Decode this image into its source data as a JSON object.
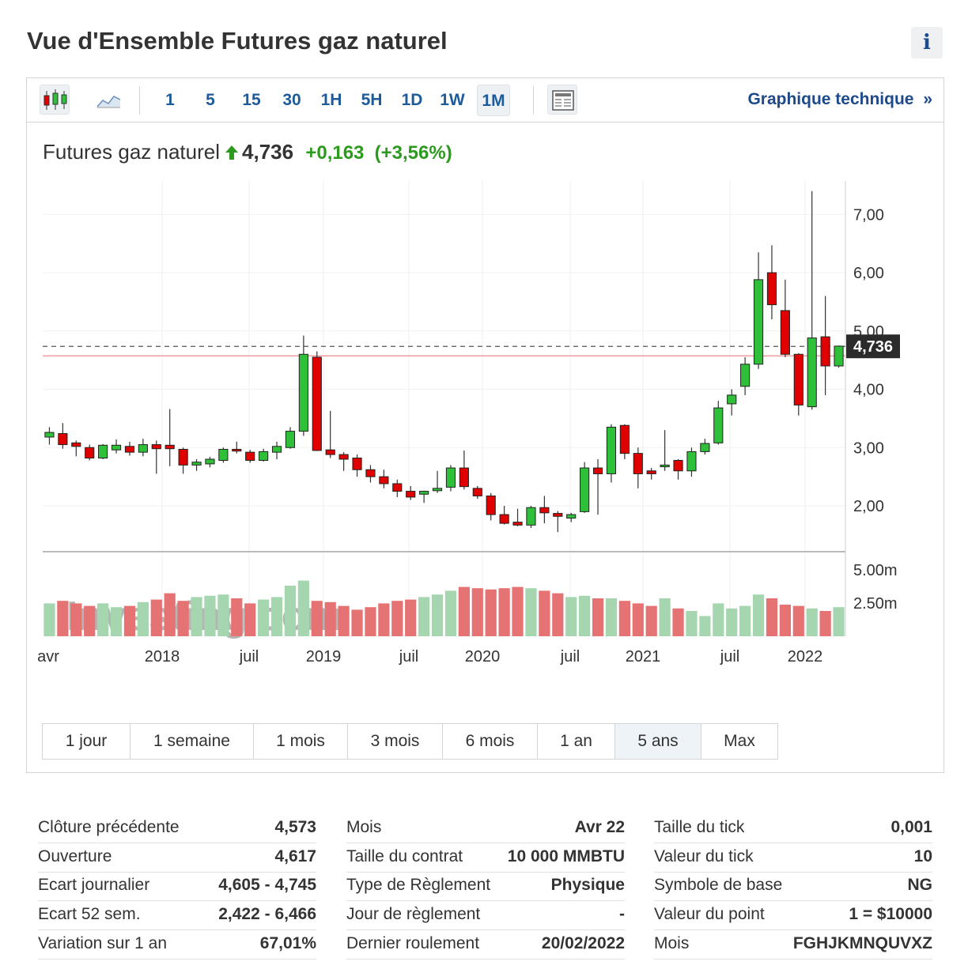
{
  "header": {
    "title": "Vue d'Ensemble Futures gaz naturel",
    "info_label": "i"
  },
  "toolbar": {
    "intervals": [
      "1",
      "5",
      "15",
      "30",
      "1H",
      "5H",
      "1D",
      "1W",
      "1M"
    ],
    "active_interval": "1M",
    "technical_link": "Graphique technique",
    "technical_chevron": "»"
  },
  "quote": {
    "name": "Futures gaz naturel",
    "price": "4,736",
    "change": "+0,163",
    "change_pct": "(+3,56%)",
    "direction": "up"
  },
  "colors": {
    "up": "#2fc03a",
    "down": "#e00000",
    "up_volume": "#a5d6b0",
    "down_volume": "#e57373",
    "link": "#1d4a8a"
  },
  "periods": [
    "1 jour",
    "1 semaine",
    "1 mois",
    "3 mois",
    "6 mois",
    "1 an",
    "5 ans",
    "Max"
  ],
  "active_period": "5 ans",
  "chart_data": {
    "type": "candlestick",
    "title": "",
    "y_ticks": [
      "7,00",
      "6,00",
      "5,00",
      "4,00",
      "3,00",
      "2,00"
    ],
    "ylim": [
      1.2,
      7.6
    ],
    "current_price_label": "4,736",
    "current_price": 4.736,
    "previous_close": 4.573,
    "volume_ticks": [
      "5.00m",
      "2.50m"
    ],
    "x_labels": [
      "avr",
      "2018",
      "juil",
      "2019",
      "juil",
      "2020",
      "juil",
      "2021",
      "juil",
      "2022"
    ],
    "watermark": "Investing.com",
    "candles": [
      {
        "o": 3.18,
        "h": 3.35,
        "l": 3.05,
        "c": 3.26
      },
      {
        "o": 3.24,
        "h": 3.42,
        "l": 2.98,
        "c": 3.05
      },
      {
        "o": 3.08,
        "h": 3.12,
        "l": 2.85,
        "c": 3.02
      },
      {
        "o": 3.0,
        "h": 3.05,
        "l": 2.78,
        "c": 2.82
      },
      {
        "o": 2.82,
        "h": 3.06,
        "l": 2.8,
        "c": 3.04
      },
      {
        "o": 2.96,
        "h": 3.14,
        "l": 2.9,
        "c": 3.04
      },
      {
        "o": 3.02,
        "h": 3.1,
        "l": 2.86,
        "c": 2.92
      },
      {
        "o": 2.92,
        "h": 3.15,
        "l": 2.85,
        "c": 3.05
      },
      {
        "o": 3.05,
        "h": 3.12,
        "l": 2.55,
        "c": 2.98
      },
      {
        "o": 3.04,
        "h": 3.66,
        "l": 2.68,
        "c": 2.98
      },
      {
        "o": 2.97,
        "h": 3.0,
        "l": 2.55,
        "c": 2.7
      },
      {
        "o": 2.7,
        "h": 2.8,
        "l": 2.6,
        "c": 2.75
      },
      {
        "o": 2.72,
        "h": 2.84,
        "l": 2.66,
        "c": 2.8
      },
      {
        "o": 2.78,
        "h": 3.0,
        "l": 2.74,
        "c": 2.97
      },
      {
        "o": 2.97,
        "h": 3.1,
        "l": 2.9,
        "c": 2.94
      },
      {
        "o": 2.92,
        "h": 2.96,
        "l": 2.74,
        "c": 2.78
      },
      {
        "o": 2.78,
        "h": 2.98,
        "l": 2.76,
        "c": 2.93
      },
      {
        "o": 2.92,
        "h": 3.1,
        "l": 2.8,
        "c": 3.02
      },
      {
        "o": 3.0,
        "h": 3.35,
        "l": 2.98,
        "c": 3.28
      },
      {
        "o": 3.28,
        "h": 4.92,
        "l": 3.2,
        "c": 4.6
      },
      {
        "o": 4.55,
        "h": 4.65,
        "l": 2.94,
        "c": 2.95
      },
      {
        "o": 2.96,
        "h": 3.63,
        "l": 2.82,
        "c": 2.88
      },
      {
        "o": 2.88,
        "h": 2.92,
        "l": 2.6,
        "c": 2.8
      },
      {
        "o": 2.82,
        "h": 2.88,
        "l": 2.5,
        "c": 2.62
      },
      {
        "o": 2.62,
        "h": 2.7,
        "l": 2.4,
        "c": 2.5
      },
      {
        "o": 2.5,
        "h": 2.62,
        "l": 2.3,
        "c": 2.38
      },
      {
        "o": 2.38,
        "h": 2.45,
        "l": 2.15,
        "c": 2.25
      },
      {
        "o": 2.25,
        "h": 2.34,
        "l": 2.1,
        "c": 2.15
      },
      {
        "o": 2.2,
        "h": 2.26,
        "l": 2.05,
        "c": 2.25
      },
      {
        "o": 2.26,
        "h": 2.6,
        "l": 2.22,
        "c": 2.3
      },
      {
        "o": 2.32,
        "h": 2.7,
        "l": 2.25,
        "c": 2.65
      },
      {
        "o": 2.65,
        "h": 2.95,
        "l": 2.28,
        "c": 2.33
      },
      {
        "o": 2.3,
        "h": 2.34,
        "l": 2.12,
        "c": 2.17
      },
      {
        "o": 2.17,
        "h": 2.22,
        "l": 1.75,
        "c": 1.85
      },
      {
        "o": 1.85,
        "h": 2.0,
        "l": 1.68,
        "c": 1.7
      },
      {
        "o": 1.72,
        "h": 1.95,
        "l": 1.65,
        "c": 1.67
      },
      {
        "o": 1.67,
        "h": 2.0,
        "l": 1.62,
        "c": 1.97
      },
      {
        "o": 1.97,
        "h": 2.17,
        "l": 1.7,
        "c": 1.88
      },
      {
        "o": 1.87,
        "h": 1.91,
        "l": 1.55,
        "c": 1.82
      },
      {
        "o": 1.79,
        "h": 1.88,
        "l": 1.72,
        "c": 1.85
      },
      {
        "o": 1.9,
        "h": 2.75,
        "l": 1.88,
        "c": 2.65
      },
      {
        "o": 2.65,
        "h": 2.8,
        "l": 1.85,
        "c": 2.55
      },
      {
        "o": 2.55,
        "h": 3.4,
        "l": 2.4,
        "c": 3.35
      },
      {
        "o": 3.38,
        "h": 3.4,
        "l": 2.8,
        "c": 2.9
      },
      {
        "o": 2.9,
        "h": 3.0,
        "l": 2.3,
        "c": 2.55
      },
      {
        "o": 2.6,
        "h": 2.65,
        "l": 2.45,
        "c": 2.55
      },
      {
        "o": 2.67,
        "h": 3.3,
        "l": 2.6,
        "c": 2.7
      },
      {
        "o": 2.78,
        "h": 2.8,
        "l": 2.45,
        "c": 2.6
      },
      {
        "o": 2.6,
        "h": 3.0,
        "l": 2.5,
        "c": 2.93
      },
      {
        "o": 2.93,
        "h": 3.15,
        "l": 2.88,
        "c": 3.07
      },
      {
        "o": 3.08,
        "h": 3.8,
        "l": 3.05,
        "c": 3.68
      },
      {
        "o": 3.75,
        "h": 4.0,
        "l": 3.55,
        "c": 3.9
      },
      {
        "o": 4.05,
        "h": 4.55,
        "l": 3.9,
        "c": 4.43
      },
      {
        "o": 4.43,
        "h": 6.35,
        "l": 4.35,
        "c": 5.88
      },
      {
        "o": 6.0,
        "h": 6.47,
        "l": 5.2,
        "c": 5.45
      },
      {
        "o": 5.35,
        "h": 5.88,
        "l": 4.55,
        "c": 4.6
      },
      {
        "o": 4.6,
        "h": 4.62,
        "l": 3.55,
        "c": 3.73
      },
      {
        "o": 3.7,
        "h": 7.4,
        "l": 3.65,
        "c": 4.88
      },
      {
        "o": 4.9,
        "h": 5.6,
        "l": 3.9,
        "c": 4.4
      },
      {
        "o": 4.4,
        "h": 4.75,
        "l": 4.37,
        "c": 4.74
      }
    ],
    "volume_max": 6.0,
    "volumes": [
      2.6,
      2.8,
      2.6,
      2.4,
      2.6,
      2.3,
      2.4,
      2.7,
      2.9,
      3.4,
      2.8,
      3.1,
      3.2,
      3.3,
      3.0,
      2.6,
      2.9,
      3.1,
      4.0,
      4.4,
      2.8,
      2.7,
      2.4,
      2.1,
      2.3,
      2.6,
      2.8,
      2.9,
      3.1,
      3.3,
      3.6,
      3.9,
      3.8,
      3.7,
      3.8,
      3.9,
      3.8,
      3.6,
      3.4,
      3.1,
      3.2,
      3.0,
      3.0,
      2.8,
      2.6,
      2.4,
      3.0,
      2.2,
      2.0,
      1.6,
      2.6,
      2.2,
      2.4,
      3.3,
      3.0,
      2.5,
      2.4,
      2.2,
      2.0,
      2.3
    ]
  },
  "stats": [
    [
      {
        "label": "Clôture précédente",
        "value": "4,573"
      },
      {
        "label": "Ouverture",
        "value": "4,617"
      },
      {
        "label": "Ecart journalier",
        "value": "4,605 - 4,745"
      },
      {
        "label": "Ecart 52 sem.",
        "value": "2,422 - 6,466"
      },
      {
        "label": "Variation sur 1 an",
        "value": "67,01%"
      }
    ],
    [
      {
        "label": "Mois",
        "value": "Avr 22"
      },
      {
        "label": "Taille du contrat",
        "value": "10 000 MMBTU"
      },
      {
        "label": "Type de Règlement",
        "value": "Physique"
      },
      {
        "label": "Jour de règlement",
        "value": "-"
      },
      {
        "label": "Dernier roulement",
        "value": "20/02/2022"
      }
    ],
    [
      {
        "label": "Taille du tick",
        "value": "0,001"
      },
      {
        "label": "Valeur du tick",
        "value": "10"
      },
      {
        "label": "Symbole de base",
        "value": "NG"
      },
      {
        "label": "Valeur du point",
        "value": "1 = $10000"
      },
      {
        "label": "Mois",
        "value": "FGHJKMNQUVXZ"
      }
    ]
  ]
}
